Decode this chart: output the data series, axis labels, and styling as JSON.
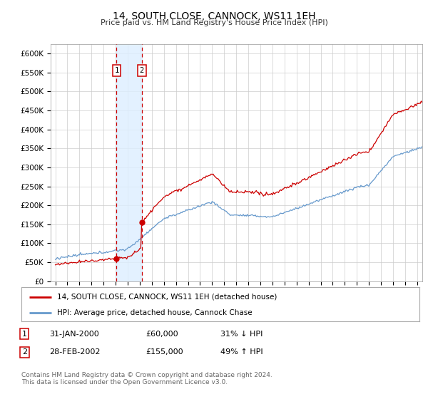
{
  "title": "14, SOUTH CLOSE, CANNOCK, WS11 1EH",
  "subtitle": "Price paid vs. HM Land Registry's House Price Index (HPI)",
  "yticks": [
    0,
    50000,
    100000,
    150000,
    200000,
    250000,
    300000,
    350000,
    400000,
    450000,
    500000,
    550000,
    600000
  ],
  "xlim_start": 1994.6,
  "xlim_end": 2025.4,
  "ylim": [
    0,
    625000
  ],
  "sale1_date": 2000.08,
  "sale1_price": 60000,
  "sale1_label": "1",
  "sale2_date": 2002.17,
  "sale2_price": 155000,
  "sale2_label": "2",
  "vline1_x": 2000.08,
  "vline2_x": 2002.17,
  "shade_x1": 2000.08,
  "shade_x2": 2002.17,
  "legend_line1_color": "#cc0000",
  "legend_line1_label": "14, SOUTH CLOSE, CANNOCK, WS11 1EH (detached house)",
  "legend_line2_color": "#6699cc",
  "legend_line2_label": "HPI: Average price, detached house, Cannock Chase",
  "table_row1": [
    "1",
    "31-JAN-2000",
    "£60,000",
    "31% ↓ HPI"
  ],
  "table_row2": [
    "2",
    "28-FEB-2002",
    "£155,000",
    "49% ↑ HPI"
  ],
  "footer": "Contains HM Land Registry data © Crown copyright and database right 2024.\nThis data is licensed under the Open Government Licence v3.0.",
  "background_color": "#ffffff",
  "grid_color": "#cccccc"
}
